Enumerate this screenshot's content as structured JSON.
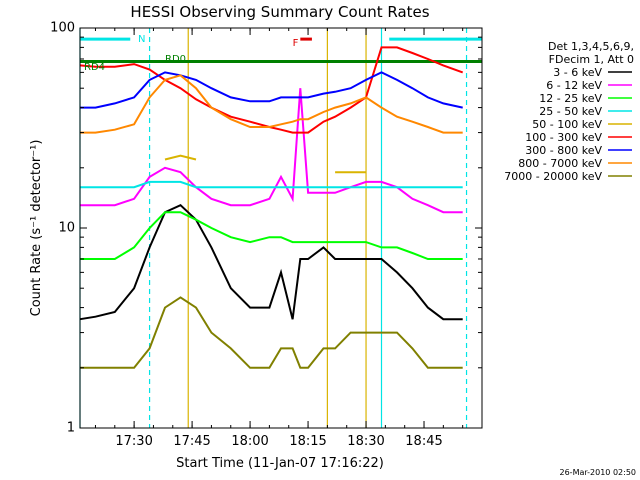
{
  "chart_data": {
    "type": "line",
    "title": "HESSI Observing Summary Count Rates",
    "xlabel": "Start Time (11-Jan-07 17:16:22)",
    "ylabel": "Count Rate (s⁻¹ detector⁻¹)",
    "y_scale": "log",
    "ylim": [
      1,
      100
    ],
    "xlim": [
      "17:16",
      "19:00"
    ],
    "x_ticks": [
      "17:30",
      "17:45",
      "18:00",
      "18:15",
      "18:30",
      "18:45"
    ],
    "y_tick_labels": [
      "1",
      "10",
      "100"
    ],
    "legend_header": [
      "Det 1,3,4,5,6,9,",
      "FDecim 1, Att 0"
    ],
    "legend_position": "right",
    "footer_date": "26-Mar-2010 02:50",
    "annotations": [
      {
        "label": "N",
        "color": "#00e5e5"
      },
      {
        "label": "RD0",
        "color": "#008000"
      },
      {
        "label": "RD4",
        "color": "#008000"
      },
      {
        "label": "F",
        "color": "#dd0000"
      }
    ],
    "reference_lines": [
      {
        "label": "N",
        "color": "#00e5e5",
        "y": 88,
        "segments": [
          [
            "17:16",
            "17:29"
          ],
          [
            "18:36",
            "19:00"
          ]
        ]
      },
      {
        "label": "RD0",
        "color": "#008000",
        "y": 68,
        "segments": [
          [
            "17:16",
            "19:00"
          ]
        ]
      },
      {
        "label": "F",
        "color": "#dd0000",
        "y": 88,
        "segments": [
          [
            "18:13",
            "18:16"
          ]
        ]
      }
    ],
    "vertical_markers": [
      {
        "color": "#00e5e5",
        "style": "solid",
        "times": [
          "17:16",
          "18:34"
        ]
      },
      {
        "color": "#00e5e5",
        "style": "dashed",
        "times": [
          "17:34",
          "18:56"
        ]
      },
      {
        "color": "#d9b400",
        "style": "solid",
        "times": [
          "17:44",
          "18:20",
          "18:30"
        ]
      }
    ],
    "x": [
      "17:16",
      "17:20",
      "17:25",
      "17:30",
      "17:34",
      "17:38",
      "17:42",
      "17:46",
      "17:50",
      "17:55",
      "18:00",
      "18:05",
      "18:08",
      "18:11",
      "18:13",
      "18:15",
      "18:19",
      "18:22",
      "18:26",
      "18:30",
      "18:34",
      "18:38",
      "18:42",
      "18:46",
      "18:50",
      "18:55"
    ],
    "series": [
      {
        "name": "3 - 6 keV",
        "color": "#000000",
        "values": [
          3.5,
          3.6,
          3.8,
          5.0,
          8.0,
          12.0,
          13.0,
          11.0,
          8.0,
          5.0,
          4.0,
          4.0,
          6.0,
          3.5,
          7.0,
          7.0,
          8.0,
          7.0,
          7.0,
          7.0,
          7.0,
          6.0,
          5.0,
          4.0,
          3.5,
          3.5
        ]
      },
      {
        "name": "6 - 12 keV",
        "color": "#ff00ff",
        "values": [
          13,
          13,
          13,
          14,
          18,
          20,
          19,
          16,
          14,
          13,
          13,
          14,
          18,
          14,
          50,
          15,
          15,
          15,
          16,
          17,
          17,
          16,
          14,
          13,
          12,
          12
        ]
      },
      {
        "name": "12 - 25 keV",
        "color": "#00ff00",
        "values": [
          7,
          7,
          7,
          8,
          10,
          12,
          12,
          11,
          10,
          9,
          8.5,
          9,
          9,
          8.5,
          8.5,
          8.5,
          8.5,
          8.5,
          8.5,
          8.5,
          8,
          8,
          7.5,
          7,
          7,
          7
        ]
      },
      {
        "name": "25 - 50 keV",
        "color": "#00e5e5",
        "values": [
          16,
          16,
          16,
          16,
          17,
          17,
          17,
          16,
          16,
          16,
          16,
          16,
          16,
          16,
          16,
          16,
          16,
          16,
          16,
          16,
          16,
          16,
          16,
          16,
          16,
          16
        ]
      },
      {
        "name": "50 - 100 keV",
        "color": "#d9b400",
        "values": [
          null,
          null,
          null,
          null,
          null,
          22,
          23,
          22,
          null,
          null,
          null,
          null,
          null,
          null,
          null,
          null,
          null,
          19,
          19,
          19,
          null,
          null,
          null,
          null,
          null,
          null
        ]
      },
      {
        "name": "100 - 300 keV",
        "color": "#ff0000",
        "values": [
          65,
          64,
          64,
          66,
          62,
          55,
          50,
          44,
          40,
          36,
          34,
          32,
          31,
          30,
          30,
          30,
          34,
          36,
          40,
          45,
          80,
          80,
          75,
          70,
          65,
          60
        ]
      },
      {
        "name": "300 - 800 keV",
        "color": "#0000ff",
        "values": [
          40,
          40,
          42,
          45,
          55,
          60,
          58,
          55,
          50,
          45,
          43,
          43,
          45,
          45,
          45,
          45,
          47,
          48,
          50,
          55,
          60,
          55,
          50,
          45,
          42,
          40
        ]
      },
      {
        "name": "800 - 7000 keV",
        "color": "#ff8800",
        "values": [
          30,
          30,
          31,
          33,
          45,
          55,
          58,
          50,
          40,
          35,
          32,
          32,
          33,
          34,
          35,
          35,
          38,
          40,
          42,
          45,
          40,
          36,
          34,
          32,
          30,
          30
        ]
      },
      {
        "name": "7000 - 20000 keV",
        "color": "#808000",
        "values": [
          2.0,
          2.0,
          2.0,
          2.0,
          2.5,
          4.0,
          4.5,
          4.0,
          3.0,
          2.5,
          2.0,
          2.0,
          2.5,
          2.5,
          2.0,
          2.0,
          2.5,
          2.5,
          3.0,
          3.0,
          3.0,
          3.0,
          2.5,
          2.0,
          2.0,
          2.0
        ]
      }
    ]
  }
}
